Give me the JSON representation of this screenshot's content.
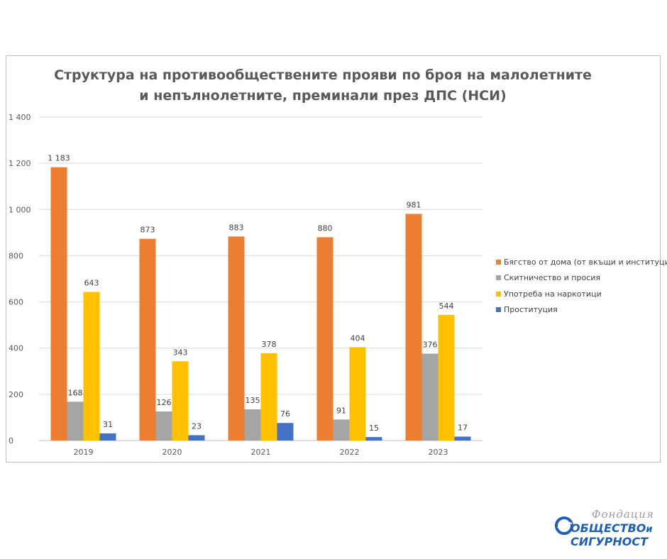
{
  "chart_data": {
    "type": "bar",
    "title_line1": "Структура на противообществените прояви по броя на малолетните",
    "title_line2": "и непълнолетните, преминали през ДПС  (НСИ)",
    "categories": [
      "2019",
      "2020",
      "2021",
      "2022",
      "2023"
    ],
    "series": [
      {
        "name": "Бягство от дома (от вкъщи и институции)",
        "color": "#ED7D31",
        "values": [
          1183,
          873,
          883,
          880,
          981
        ]
      },
      {
        "name": "Скитничество и просия",
        "color": "#A5A5A5",
        "values": [
          168,
          126,
          135,
          91,
          376
        ]
      },
      {
        "name": "Употреба на наркотици",
        "color": "#FFC000",
        "values": [
          643,
          343,
          378,
          404,
          544
        ]
      },
      {
        "name": "Проституция",
        "color": "#4472C4",
        "values": [
          31,
          23,
          76,
          15,
          17
        ]
      }
    ],
    "ylim": [
      0,
      1400
    ],
    "yticks": [
      0,
      200,
      400,
      600,
      800,
      1000,
      1200,
      1400
    ],
    "ytick_labels": [
      "0",
      "200",
      "400",
      "600",
      "800",
      "1 000",
      "1 200",
      "1 400"
    ],
    "data_labels": [
      [
        "1 183",
        "873",
        "883",
        "880",
        "981"
      ],
      [
        "168",
        "126",
        "135",
        "91",
        "376"
      ],
      [
        "643",
        "343",
        "378",
        "404",
        "544"
      ],
      [
        "31",
        "23",
        "76",
        "15",
        "17"
      ]
    ],
    "grid": true,
    "legend_position": "right"
  },
  "logo": {
    "top_word": "Фондация",
    "line1": "ОБЩЕСТВО",
    "line1_suffix": "и",
    "line2": "СИГУРНОСТ",
    "color": "#1F5FAE"
  }
}
